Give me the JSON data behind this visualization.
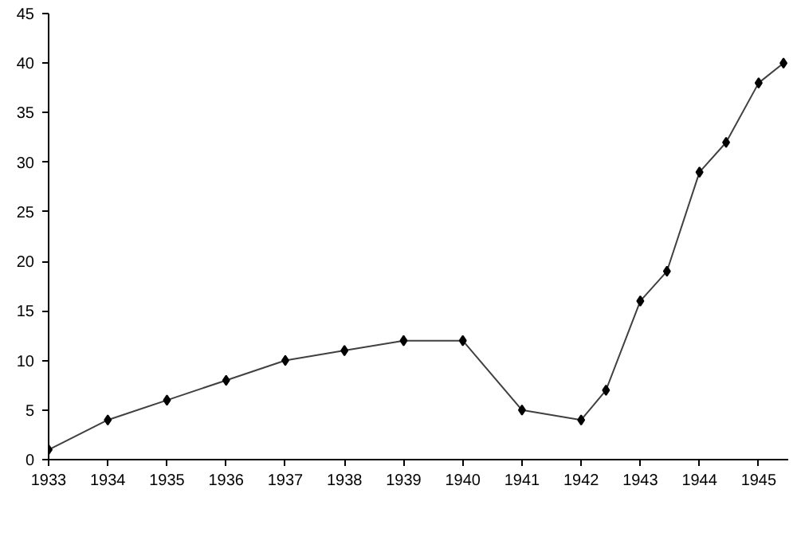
{
  "chart_data": {
    "type": "line",
    "x": [
      1933,
      1934,
      1935,
      1936,
      1937,
      1938,
      1939,
      1940,
      1941,
      1942,
      1942.42,
      1943,
      1943.45,
      1944,
      1944.45,
      1945,
      1945.42
    ],
    "series": [
      {
        "color": "#404040",
        "values": [
          1,
          4,
          6,
          8,
          10,
          11,
          12,
          12,
          5,
          4,
          7,
          16,
          19,
          29,
          32,
          38,
          40
        ]
      }
    ],
    "xlim": [
      1933,
      1945.5
    ],
    "xticks": [
      1933,
      1934,
      1935,
      1936,
      1937,
      1938,
      1939,
      1940,
      1941,
      1942,
      1943,
      1944,
      1945
    ],
    "ylim": [
      0,
      45
    ],
    "yticks": [
      0,
      5,
      10,
      15,
      20,
      25,
      30,
      35,
      40,
      45
    ],
    "grid": false,
    "marker": "diamond",
    "line_style": "solid"
  }
}
